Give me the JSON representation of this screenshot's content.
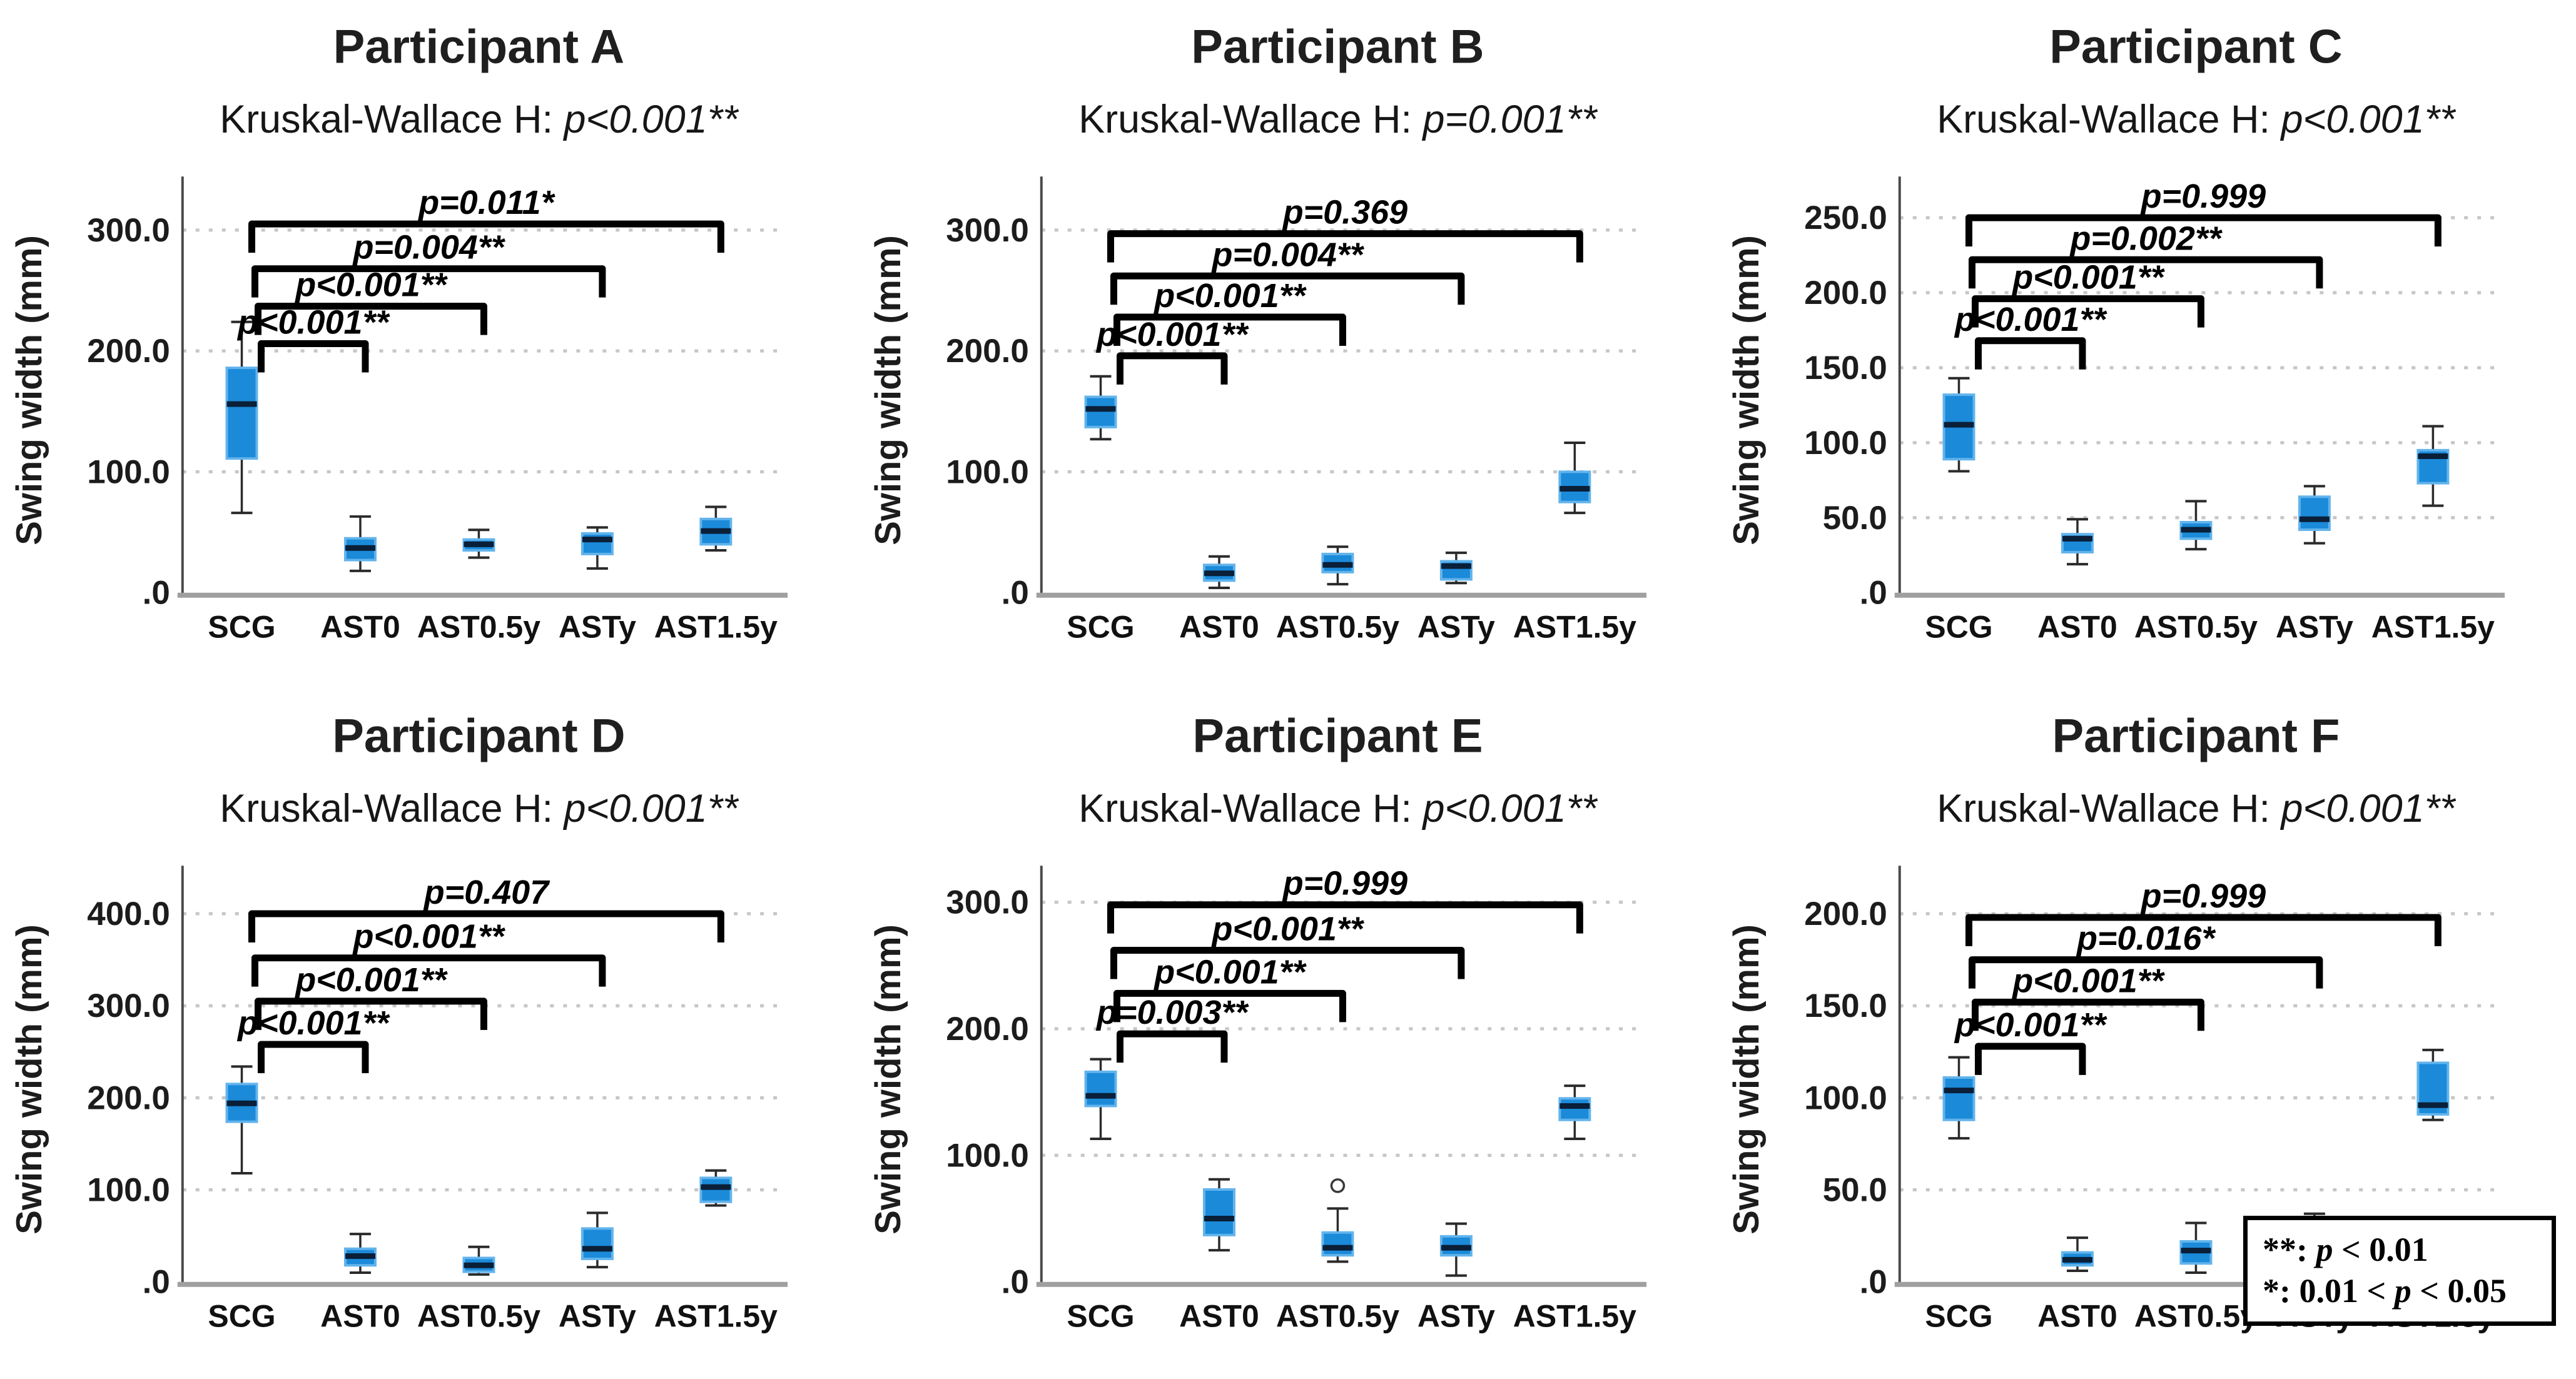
{
  "page": {
    "background": "#ffffff"
  },
  "style": {
    "box_fill": "#1b8ad9",
    "box_stroke": "#63b4ec",
    "median_color": "#0a1f38",
    "whisker_color": "#2b2b2b",
    "grid_color": "#c6c6c6",
    "axis_color": "#4a4a4a",
    "baseline_color": "#9f9f9f",
    "bracket_color": "#000000",
    "text_color": "#1c1c1c"
  },
  "legend": {
    "line1_prefix": "**: ",
    "line1_p": "p",
    "line1_rest": " < 0.01",
    "line2_prefix": "*: 0.01 < ",
    "line2_p": "p",
    "line2_rest": " < 0.05"
  },
  "chart_data": [
    {
      "type": "box",
      "id": "participant-a",
      "title": "Participant A",
      "subtitle_prefix": "Kruskal-Wallace H: ",
      "subtitle_stat": "p<0.001**",
      "ylabel": "Swing width (mm)",
      "categories": [
        "SCG",
        "AST0",
        "AST0.5y",
        "ASTy",
        "AST1.5y"
      ],
      "ylim": [
        0,
        335
      ],
      "yticks": [
        {
          "value": 300,
          "label": "300.0"
        },
        {
          "value": 200,
          "label": "200.0"
        },
        {
          "value": 100,
          "label": "100.0"
        },
        {
          "value": 0,
          "label": ".0"
        }
      ],
      "boxes": [
        {
          "category": "SCG",
          "median": 156,
          "q1": 111,
          "q3": 186,
          "whisker_low": 66,
          "whisker_high": 224,
          "outliers": []
        },
        {
          "category": "AST0",
          "median": 37,
          "q1": 27,
          "q3": 45,
          "whisker_low": 18,
          "whisker_high": 63,
          "outliers": []
        },
        {
          "category": "AST0.5y",
          "median": 40,
          "q1": 35,
          "q3": 44,
          "whisker_low": 29,
          "whisker_high": 52,
          "outliers": []
        },
        {
          "category": "ASTy",
          "median": 44,
          "q1": 32,
          "q3": 49,
          "whisker_low": 20,
          "whisker_high": 54,
          "outliers": []
        },
        {
          "category": "AST1.5y",
          "median": 51,
          "q1": 40,
          "q3": 61,
          "whisker_low": 35,
          "whisker_high": 71,
          "outliers": []
        }
      ],
      "comparisons": [
        {
          "from": "SCG",
          "to": "AST1.5y",
          "p_label": "p=0.011*",
          "y": 305
        },
        {
          "from": "SCG",
          "to": "ASTy",
          "p_label": "p=0.004**",
          "y": 268
        },
        {
          "from": "SCG",
          "to": "AST0.5y",
          "p_label": "p<0.001**",
          "y": 237
        },
        {
          "from": "SCG",
          "to": "AST0",
          "p_label": "p<0.001**",
          "y": 206
        }
      ]
    },
    {
      "type": "box",
      "id": "participant-b",
      "title": "Participant B",
      "subtitle_prefix": "Kruskal-Wallace H: ",
      "subtitle_stat": "p=0.001**",
      "ylabel": "Swing width (mm)",
      "categories": [
        "SCG",
        "AST0",
        "AST0.5y",
        "ASTy",
        "AST1.5y"
      ],
      "ylim": [
        0,
        335
      ],
      "yticks": [
        {
          "value": 300,
          "label": "300.0"
        },
        {
          "value": 200,
          "label": "200.0"
        },
        {
          "value": 100,
          "label": "100.0"
        },
        {
          "value": 0,
          "label": ".0"
        }
      ],
      "boxes": [
        {
          "category": "SCG",
          "median": 152,
          "q1": 137,
          "q3": 162,
          "whisker_low": 127,
          "whisker_high": 179,
          "outliers": []
        },
        {
          "category": "AST0",
          "median": 16,
          "q1": 10,
          "q3": 23,
          "whisker_low": 4,
          "whisker_high": 30,
          "outliers": []
        },
        {
          "category": "AST0.5y",
          "median": 23,
          "q1": 17,
          "q3": 32,
          "whisker_low": 7,
          "whisker_high": 38,
          "outliers": []
        },
        {
          "category": "ASTy",
          "median": 22,
          "q1": 11,
          "q3": 26,
          "whisker_low": 8,
          "whisker_high": 33,
          "outliers": []
        },
        {
          "category": "AST1.5y",
          "median": 86,
          "q1": 75,
          "q3": 100,
          "whisker_low": 66,
          "whisker_high": 124,
          "outliers": []
        }
      ],
      "comparisons": [
        {
          "from": "SCG",
          "to": "AST1.5y",
          "p_label": "p=0.369",
          "y": 297
        },
        {
          "from": "SCG",
          "to": "ASTy",
          "p_label": "p=0.004**",
          "y": 262
        },
        {
          "from": "SCG",
          "to": "AST0.5y",
          "p_label": "p<0.001**",
          "y": 228
        },
        {
          "from": "SCG",
          "to": "AST0",
          "p_label": "p<0.001**",
          "y": 196
        }
      ]
    },
    {
      "type": "box",
      "id": "participant-c",
      "title": "Participant C",
      "subtitle_prefix": "Kruskal-Wallace H: ",
      "subtitle_stat": "p<0.001**",
      "ylabel": "Swing width (mm)",
      "categories": [
        "SCG",
        "AST0",
        "AST0.5y",
        "ASTy",
        "AST1.5y"
      ],
      "ylim": [
        0,
        270
      ],
      "yticks": [
        {
          "value": 250,
          "label": "250.0"
        },
        {
          "value": 200,
          "label": "200.0"
        },
        {
          "value": 150,
          "label": "150.0"
        },
        {
          "value": 100,
          "label": "100.0"
        },
        {
          "value": 50,
          "label": "50.0"
        },
        {
          "value": 0,
          "label": ".0"
        }
      ],
      "boxes": [
        {
          "category": "SCG",
          "median": 112,
          "q1": 89,
          "q3": 132,
          "whisker_low": 81,
          "whisker_high": 143,
          "outliers": []
        },
        {
          "category": "AST0",
          "median": 36,
          "q1": 27,
          "q3": 39,
          "whisker_low": 19,
          "whisker_high": 49,
          "outliers": []
        },
        {
          "category": "AST0.5y",
          "median": 42,
          "q1": 36,
          "q3": 47,
          "whisker_low": 29,
          "whisker_high": 61,
          "outliers": []
        },
        {
          "category": "ASTy",
          "median": 49,
          "q1": 42,
          "q3": 64,
          "whisker_low": 33,
          "whisker_high": 71,
          "outliers": []
        },
        {
          "category": "AST1.5y",
          "median": 91,
          "q1": 73,
          "q3": 95,
          "whisker_low": 58,
          "whisker_high": 111,
          "outliers": []
        }
      ],
      "comparisons": [
        {
          "from": "SCG",
          "to": "AST1.5y",
          "p_label": "p=0.999",
          "y": 250
        },
        {
          "from": "SCG",
          "to": "ASTy",
          "p_label": "p=0.002**",
          "y": 222
        },
        {
          "from": "SCG",
          "to": "AST0.5y",
          "p_label": "p<0.001**",
          "y": 196
        },
        {
          "from": "SCG",
          "to": "AST0",
          "p_label": "p<0.001**",
          "y": 168
        }
      ]
    },
    {
      "type": "box",
      "id": "participant-d",
      "title": "Participant D",
      "subtitle_prefix": "Kruskal-Wallace H: ",
      "subtitle_stat": "p<0.001**",
      "ylabel": "Swing width (mm)",
      "categories": [
        "SCG",
        "AST0",
        "AST0.5y",
        "ASTy",
        "AST1.5y"
      ],
      "ylim": [
        0,
        440
      ],
      "yticks": [
        {
          "value": 400,
          "label": "400.0"
        },
        {
          "value": 300,
          "label": "300.0"
        },
        {
          "value": 200,
          "label": "200.0"
        },
        {
          "value": 100,
          "label": "100.0"
        },
        {
          "value": 0,
          "label": ".0"
        }
      ],
      "boxes": [
        {
          "category": "SCG",
          "median": 194,
          "q1": 174,
          "q3": 215,
          "whisker_low": 118,
          "whisker_high": 234,
          "outliers": []
        },
        {
          "category": "AST0",
          "median": 28,
          "q1": 18,
          "q3": 36,
          "whisker_low": 10,
          "whisker_high": 52,
          "outliers": []
        },
        {
          "category": "AST0.5y",
          "median": 18,
          "q1": 11,
          "q3": 26,
          "whisker_low": 8,
          "whisker_high": 38,
          "outliers": []
        },
        {
          "category": "ASTy",
          "median": 36,
          "q1": 25,
          "q3": 58,
          "whisker_low": 16,
          "whisker_high": 75,
          "outliers": []
        },
        {
          "category": "AST1.5y",
          "median": 103,
          "q1": 87,
          "q3": 113,
          "whisker_low": 83,
          "whisker_high": 121,
          "outliers": []
        }
      ],
      "comparisons": [
        {
          "from": "SCG",
          "to": "AST1.5y",
          "p_label": "p=0.407",
          "y": 400
        },
        {
          "from": "SCG",
          "to": "ASTy",
          "p_label": "p<0.001**",
          "y": 352
        },
        {
          "from": "SCG",
          "to": "AST0.5y",
          "p_label": "p<0.001**",
          "y": 305
        },
        {
          "from": "SCG",
          "to": "AST0",
          "p_label": "p<0.001**",
          "y": 258
        }
      ]
    },
    {
      "type": "box",
      "id": "participant-e",
      "title": "Participant E",
      "subtitle_prefix": "Kruskal-Wallace H: ",
      "subtitle_stat": "p<0.001**",
      "ylabel": "Swing width (mm)",
      "categories": [
        "SCG",
        "AST0",
        "AST0.5y",
        "ASTy",
        "AST1.5y"
      ],
      "ylim": [
        0,
        320
      ],
      "yticks": [
        {
          "value": 300,
          "label": "300.0"
        },
        {
          "value": 200,
          "label": "200.0"
        },
        {
          "value": 100,
          "label": "100.0"
        },
        {
          "value": 0,
          "label": ".0"
        }
      ],
      "boxes": [
        {
          "category": "SCG",
          "median": 147,
          "q1": 139,
          "q3": 166,
          "whisker_low": 113,
          "whisker_high": 176,
          "outliers": []
        },
        {
          "category": "AST0",
          "median": 50,
          "q1": 37,
          "q3": 73,
          "whisker_low": 25,
          "whisker_high": 81,
          "outliers": []
        },
        {
          "category": "AST0.5y",
          "median": 27,
          "q1": 21,
          "q3": 39,
          "whisker_low": 16,
          "whisker_high": 58,
          "outliers": [
            76
          ]
        },
        {
          "category": "ASTy",
          "median": 27,
          "q1": 21,
          "q3": 36,
          "whisker_low": 5,
          "whisker_high": 46,
          "outliers": []
        },
        {
          "category": "AST1.5y",
          "median": 139,
          "q1": 128,
          "q3": 145,
          "whisker_low": 113,
          "whisker_high": 155,
          "outliers": []
        }
      ],
      "comparisons": [
        {
          "from": "SCG",
          "to": "AST1.5y",
          "p_label": "p=0.999",
          "y": 298
        },
        {
          "from": "SCG",
          "to": "ASTy",
          "p_label": "p<0.001**",
          "y": 262
        },
        {
          "from": "SCG",
          "to": "AST0.5y",
          "p_label": "p<0.001**",
          "y": 228
        },
        {
          "from": "SCG",
          "to": "AST0",
          "p_label": "p=0.003**",
          "y": 196
        }
      ]
    },
    {
      "type": "box",
      "id": "participant-f",
      "title": "Participant F",
      "subtitle_prefix": "Kruskal-Wallace H: ",
      "subtitle_stat": "p<0.001**",
      "ylabel": "Swing width (mm)",
      "categories": [
        "SCG",
        "AST0",
        "AST0.5y",
        "ASTy",
        "AST1.5y"
      ],
      "ylim": [
        0,
        220
      ],
      "yticks": [
        {
          "value": 200,
          "label": "200.0"
        },
        {
          "value": 150,
          "label": "150.0"
        },
        {
          "value": 100,
          "label": "100.0"
        },
        {
          "value": 50,
          "label": "50.0"
        },
        {
          "value": 0,
          "label": ".0"
        }
      ],
      "boxes": [
        {
          "category": "SCG",
          "median": 104,
          "q1": 88,
          "q3": 111,
          "whisker_low": 78,
          "whisker_high": 122,
          "outliers": []
        },
        {
          "category": "AST0",
          "median": 12,
          "q1": 9,
          "q3": 16,
          "whisker_low": 6,
          "whisker_high": 24,
          "outliers": []
        },
        {
          "category": "AST0.5y",
          "median": 17,
          "q1": 10,
          "q3": 22,
          "whisker_low": 5,
          "whisker_high": 32,
          "outliers": []
        },
        {
          "category": "ASTy",
          "median": 25,
          "q1": 22,
          "q3": 35,
          "whisker_low": 13,
          "whisker_high": 37,
          "outliers": []
        },
        {
          "category": "AST1.5y",
          "median": 96,
          "q1": 91,
          "q3": 119,
          "whisker_low": 88,
          "whisker_high": 126,
          "outliers": []
        }
      ],
      "comparisons": [
        {
          "from": "SCG",
          "to": "AST1.5y",
          "p_label": "p=0.999",
          "y": 198
        },
        {
          "from": "SCG",
          "to": "ASTy",
          "p_label": "p=0.016*",
          "y": 175
        },
        {
          "from": "SCG",
          "to": "AST0.5y",
          "p_label": "p<0.001**",
          "y": 152
        },
        {
          "from": "SCG",
          "to": "AST0",
          "p_label": "p<0.001**",
          "y": 128
        }
      ]
    }
  ]
}
